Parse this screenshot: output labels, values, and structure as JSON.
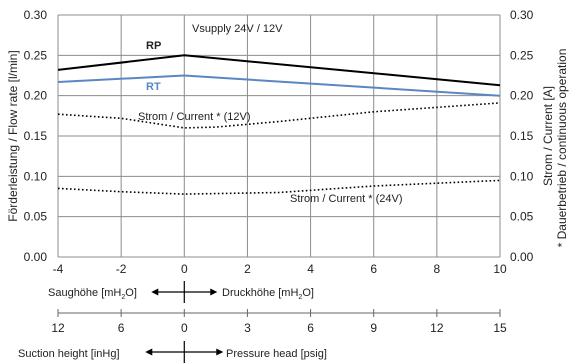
{
  "chart_data": {
    "type": "line",
    "ylabel_left": "Förderleistung / Flow rate [l/min]",
    "ylabel_right": "Strom / Current [A]",
    "note_right": "* Dauerbetrieb / continuous operation",
    "x_ticks": [
      "-4",
      "-2",
      "0",
      "2",
      "4",
      "6",
      "8",
      "10"
    ],
    "xlim": [
      -4,
      10
    ],
    "y_left_ticks": [
      "0.00",
      "0.05",
      "0.10",
      "0.15",
      "0.20",
      "0.25",
      "0.30"
    ],
    "y_right_ticks": [
      "0.00",
      "0.05",
      "0.10",
      "0.15",
      "0.20",
      "0.25",
      "0.30"
    ],
    "ylim": [
      0,
      0.3
    ],
    "grid": true,
    "annotations": {
      "vsupply": "Vsupply 24V / 12V",
      "current_12v": "Strom / Current * (12V)",
      "current_24v": "Strom / Current * (24V)"
    },
    "series": [
      {
        "name": "RP",
        "color": "#000000",
        "style": "solid",
        "x": [
          -4,
          0,
          10
        ],
        "y": [
          0.232,
          0.25,
          0.213
        ]
      },
      {
        "name": "RT",
        "color": "#5b86c4",
        "style": "solid",
        "x": [
          -4,
          0,
          10
        ],
        "y": [
          0.217,
          0.225,
          0.2
        ]
      },
      {
        "name": "Strom / Current * (12V)",
        "color": "#000000",
        "style": "dotted",
        "x": [
          -4,
          -2,
          0,
          1,
          3,
          6,
          10
        ],
        "y": [
          0.177,
          0.172,
          0.16,
          0.161,
          0.168,
          0.18,
          0.191
        ]
      },
      {
        "name": "Strom / Current * (24V)",
        "color": "#000000",
        "style": "dotted",
        "x": [
          -4,
          -2,
          0,
          3,
          6,
          10
        ],
        "y": [
          0.085,
          0.081,
          0.078,
          0.08,
          0.088,
          0.095
        ]
      }
    ],
    "scale1": {
      "left_label_main": "Saughöhe [mH",
      "left_label_sub": "2",
      "left_label_end": "O]",
      "right_label_main": "Druckhöhe [mH",
      "right_label_sub": "2",
      "right_label_end": "O]"
    },
    "scale2": {
      "ticks": [
        "12",
        "6",
        "0",
        "3",
        "6",
        "9",
        "12",
        "15"
      ],
      "left_label": "Suction height [inHg]",
      "right_label": "Pressure head [psig]"
    }
  }
}
